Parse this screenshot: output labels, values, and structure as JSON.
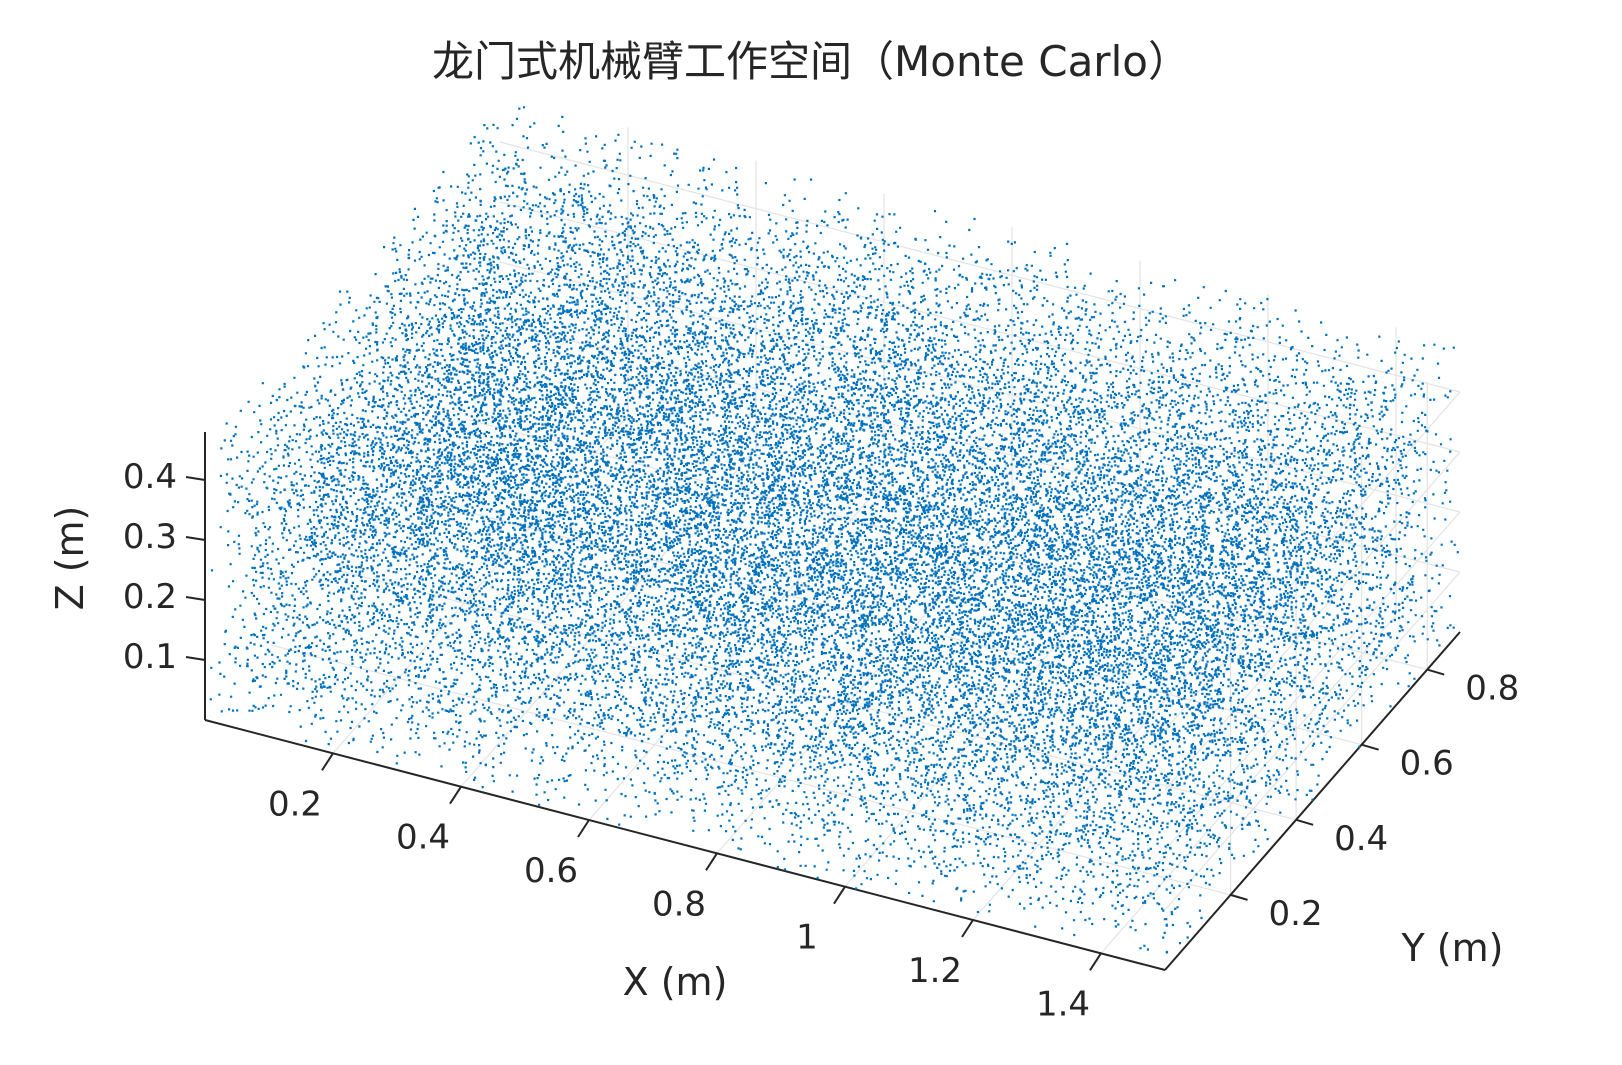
{
  "chart_data": {
    "type": "scatter",
    "subtype": "scatter3d",
    "title": "龙门式机械臂工作空间（Monte Carlo）",
    "xlabel": "X (m)",
    "ylabel": "Y (m)",
    "zlabel": "Z (m)",
    "xlim": [
      0.0,
      1.5
    ],
    "ylim": [
      0.0,
      0.9
    ],
    "zlim": [
      0.0,
      0.48
    ],
    "x_ticks": [
      "0.2",
      "0.4",
      "0.6",
      "0.8",
      "1",
      "1.2",
      "1.4"
    ],
    "x_tick_values": [
      0.2,
      0.4,
      0.6,
      0.8,
      1.0,
      1.2,
      1.4
    ],
    "y_ticks": [
      "0.2",
      "0.4",
      "0.6",
      "0.8"
    ],
    "y_tick_values": [
      0.2,
      0.4,
      0.6,
      0.8
    ],
    "z_ticks": [
      "0.1",
      "0.2",
      "0.3",
      "0.4"
    ],
    "z_tick_values": [
      0.1,
      0.2,
      0.3,
      0.4
    ],
    "grid": true,
    "series": [
      {
        "marker": "point",
        "color": "#0072BD",
        "approx_point_count": 30000,
        "distribution": "uniform random samples",
        "x_range": [
          0.0,
          1.5
        ],
        "y_range": [
          0.0,
          0.9
        ],
        "z_range": [
          0.0,
          0.48
        ]
      }
    ]
  }
}
